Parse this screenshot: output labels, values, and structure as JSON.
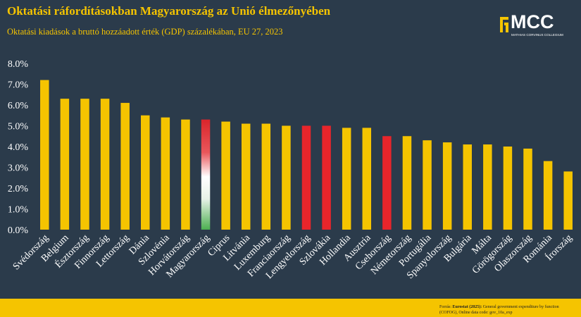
{
  "header": {
    "title": "Oktatási ráfordításokban Magyarország az Unió élmezőnyében",
    "subtitle": "Oktatási kiadások a bruttó hozzáadott érték (GDP) százalékában, EU 27, 2023"
  },
  "logo": {
    "text": "MCC",
    "subtext": "MATHIAS CORVINUS COLLEGIUM"
  },
  "footer": {
    "source_label": "Forrás:",
    "source_bold": "Eurostat (2025):",
    "source_rest": "General government expenditure by function (COFOG), Online data code: gov_10a_exp"
  },
  "colors": {
    "background": "#2b3b4b",
    "accent": "#f5c400",
    "highlight_red": "#e8252b",
    "hungary_top": "#d9252b",
    "hungary_mid": "#ffffff",
    "hungary_bottom": "#4caf50"
  },
  "chart_data": {
    "type": "bar",
    "title": "Oktatási ráfordításokban Magyarország az Unió élmezőnyében",
    "xlabel": "",
    "ylabel": "",
    "ylim": [
      0,
      8
    ],
    "yticks": [
      "0.0%",
      "1.0%",
      "2.0%",
      "3.0%",
      "4.0%",
      "5.0%",
      "6.0%",
      "7.0%",
      "8.0%"
    ],
    "categories": [
      "Svédország",
      "Belgium",
      "Észtország",
      "Finnország",
      "Lettország",
      "Dánia",
      "Szlovénia",
      "Horvátország",
      "Magyarország",
      "Ciprus",
      "Litvánia",
      "Luxemburg",
      "Franciaország",
      "Lengyelország",
      "Szlovákia",
      "Hollandia",
      "Ausztria",
      "Csehország",
      "Németország",
      "Portugália",
      "Spanyolország",
      "Bulgária",
      "Málta",
      "Görögország",
      "Olaszország",
      "Románia",
      "Írország"
    ],
    "values": [
      7.2,
      6.3,
      6.3,
      6.3,
      6.1,
      5.5,
      5.4,
      5.3,
      5.3,
      5.2,
      5.1,
      5.1,
      5.0,
      5.0,
      5.0,
      4.9,
      4.9,
      4.5,
      4.5,
      4.3,
      4.2,
      4.1,
      4.1,
      4.0,
      3.9,
      3.3,
      2.8
    ],
    "bar_style": [
      "yellow",
      "yellow",
      "yellow",
      "yellow",
      "yellow",
      "yellow",
      "yellow",
      "yellow",
      "hungary",
      "yellow",
      "yellow",
      "yellow",
      "yellow",
      "red",
      "red",
      "yellow",
      "yellow",
      "red",
      "yellow",
      "yellow",
      "yellow",
      "yellow",
      "yellow",
      "yellow",
      "yellow",
      "yellow",
      "yellow"
    ],
    "grid": false,
    "legend": "none"
  }
}
